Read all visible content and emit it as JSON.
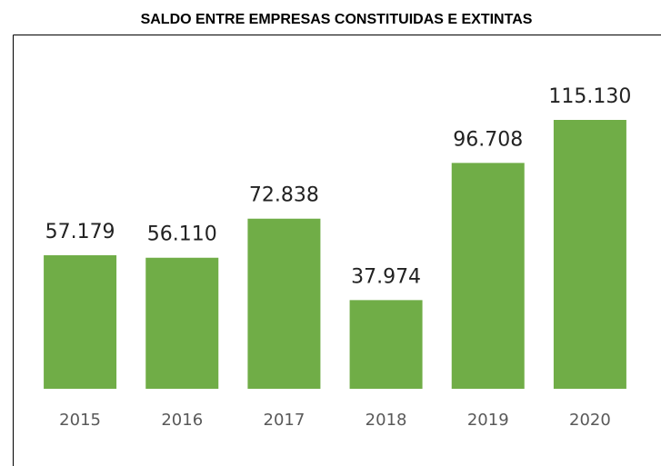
{
  "chart_data": {
    "type": "bar",
    "title": "SALDO ENTRE EMPRESAS CONSTITUIDAS E EXTINTAS",
    "categories": [
      "2015",
      "2016",
      "2017",
      "2018",
      "2019",
      "2020"
    ],
    "values": [
      57179,
      56110,
      72838,
      37974,
      96708,
      115130
    ],
    "value_labels": [
      "57.179",
      "56.110",
      "72.838",
      "37.974",
      "96.708",
      "115.130"
    ],
    "color": "#70ad47"
  }
}
